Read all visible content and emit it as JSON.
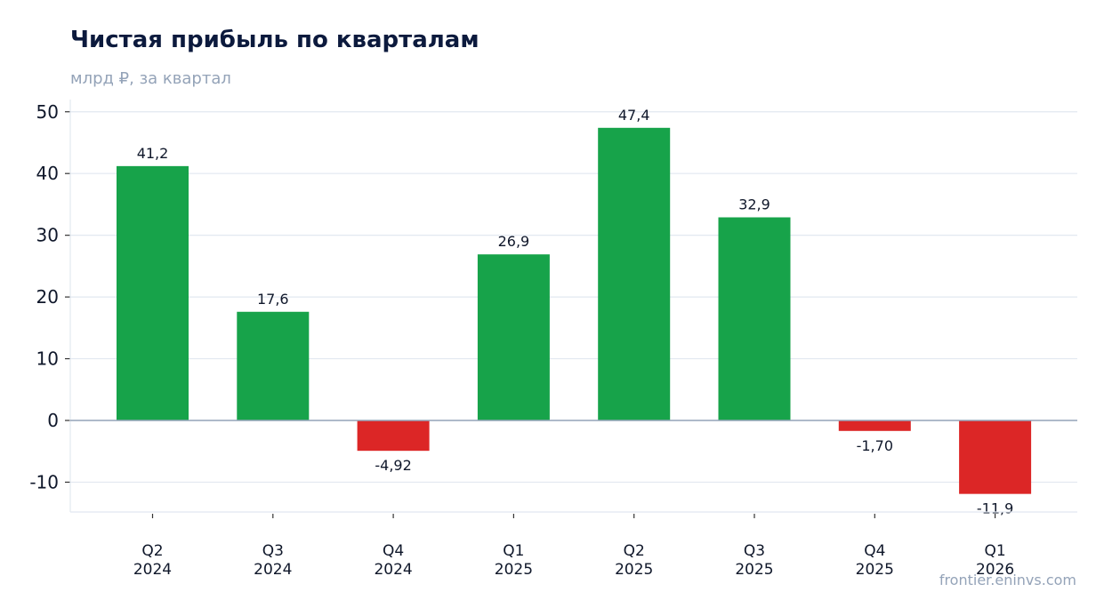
{
  "chart_data": {
    "type": "bar",
    "title": "Чистая прибыль по кварталам",
    "subtitle": "млрд ₽, за квартал",
    "categories": [
      [
        "Q2",
        "2024"
      ],
      [
        "Q3",
        "2024"
      ],
      [
        "Q4",
        "2024"
      ],
      [
        "Q1",
        "2025"
      ],
      [
        "Q2",
        "2025"
      ],
      [
        "Q3",
        "2025"
      ],
      [
        "Q4",
        "2025"
      ],
      [
        "Q1",
        "2026"
      ]
    ],
    "values": [
      41.2,
      17.6,
      -4.92,
      26.9,
      47.4,
      32.9,
      -1.7,
      -11.9
    ],
    "value_labels": [
      "41,2",
      "17,6",
      "-4,92",
      "26,9",
      "47,4",
      "32,9",
      "-1,70",
      "-11,9"
    ],
    "yticks": [
      -10,
      0,
      10,
      20,
      30,
      40,
      50
    ],
    "ylim": [
      -15,
      50
    ],
    "grid": true,
    "legend": "none",
    "colors": {
      "positive": "#17a34a",
      "negative": "#dc2626",
      "grid": "#e2e8f0",
      "zero_line": "#94a3b8"
    },
    "source": "frontier.eninvs.com"
  }
}
